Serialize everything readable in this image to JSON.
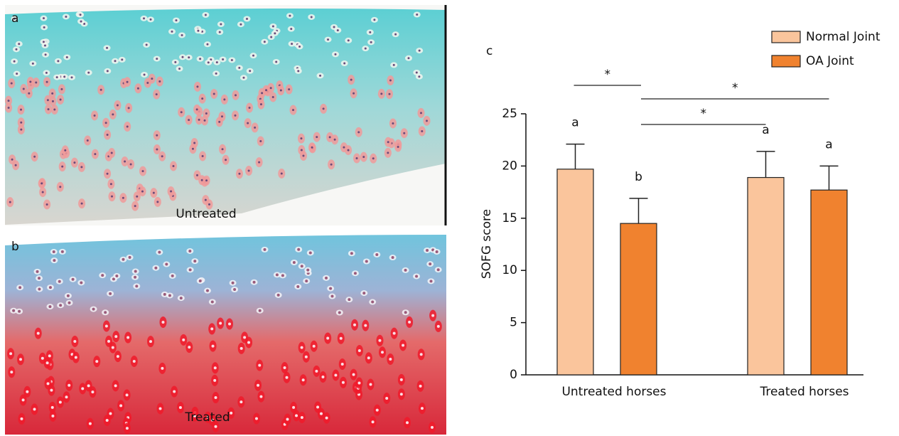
{
  "panels": [
    {
      "label": "a",
      "caption": "Untreated"
    },
    {
      "label": "b",
      "caption": "Treated"
    }
  ],
  "chart_data": {
    "type": "bar",
    "panel_label": "c",
    "y_label": "SOFG score",
    "categories": [
      "Untreated horses",
      "Treated horses"
    ],
    "series": [
      {
        "name": "Normal Joint",
        "color": "#fac59c",
        "values": [
          19.7,
          18.9
        ],
        "errors": [
          2.4,
          2.5
        ],
        "letters": [
          "a",
          "a"
        ]
      },
      {
        "name": "OA Joint",
        "color": "#f0822f",
        "values": [
          14.5,
          17.7
        ],
        "errors": [
          2.4,
          2.3
        ],
        "letters": [
          "b",
          "a"
        ]
      }
    ],
    "comparisons": [
      {
        "label": "*",
        "from": {
          "series": 0,
          "category": 0
        },
        "to": {
          "series": 1,
          "category": 0
        }
      },
      {
        "label": "*",
        "from": {
          "series": 1,
          "category": 0
        },
        "to": {
          "series": 1,
          "category": 1
        }
      },
      {
        "label": "*",
        "from": {
          "series": 1,
          "category": 0
        },
        "to": {
          "series": 0,
          "category": 1
        }
      }
    ],
    "ylim": [
      0,
      25
    ],
    "yticks": [
      0,
      5,
      10,
      15,
      20,
      25
    ],
    "legend": "top-right"
  }
}
